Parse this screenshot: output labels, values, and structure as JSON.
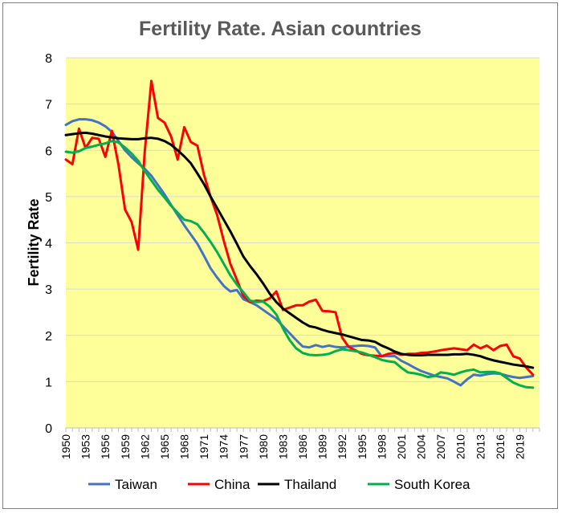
{
  "chart_data": {
    "type": "line",
    "title": "Fertility Rate.  Asian countries",
    "xlabel": "",
    "ylabel": "Fertility Rate",
    "ylim": [
      0,
      8
    ],
    "yticks": [
      0,
      1,
      2,
      3,
      4,
      5,
      6,
      7,
      8
    ],
    "xlim": [
      1950,
      2022
    ],
    "xticks": [
      1950,
      1953,
      1956,
      1959,
      1962,
      1965,
      1968,
      1971,
      1974,
      1977,
      1980,
      1983,
      1986,
      1989,
      1992,
      1995,
      1998,
      2001,
      2004,
      2007,
      2010,
      2013,
      2016,
      2019
    ],
    "plot_background": "#ffff99",
    "grid": true,
    "legend": "bottom",
    "series": [
      {
        "name": "Taiwan",
        "color": "#4472c4",
        "points": [
          [
            1950,
            6.55
          ],
          [
            1951,
            6.63
          ],
          [
            1952,
            6.67
          ],
          [
            1953,
            6.67
          ],
          [
            1954,
            6.65
          ],
          [
            1955,
            6.6
          ],
          [
            1956,
            6.52
          ],
          [
            1957,
            6.4
          ],
          [
            1958,
            6.2
          ],
          [
            1959,
            6.0
          ],
          [
            1960,
            5.85
          ],
          [
            1961,
            5.72
          ],
          [
            1962,
            5.6
          ],
          [
            1963,
            5.45
          ],
          [
            1964,
            5.25
          ],
          [
            1965,
            5.05
          ],
          [
            1966,
            4.82
          ],
          [
            1967,
            4.6
          ],
          [
            1968,
            4.38
          ],
          [
            1969,
            4.18
          ],
          [
            1970,
            3.98
          ],
          [
            1971,
            3.72
          ],
          [
            1972,
            3.45
          ],
          [
            1973,
            3.25
          ],
          [
            1974,
            3.07
          ],
          [
            1975,
            2.95
          ],
          [
            1976,
            2.98
          ],
          [
            1977,
            2.78
          ],
          [
            1978,
            2.72
          ],
          [
            1979,
            2.65
          ],
          [
            1980,
            2.55
          ],
          [
            1981,
            2.45
          ],
          [
            1982,
            2.35
          ],
          [
            1983,
            2.2
          ],
          [
            1984,
            2.05
          ],
          [
            1985,
            1.9
          ],
          [
            1986,
            1.76
          ],
          [
            1987,
            1.74
          ],
          [
            1988,
            1.79
          ],
          [
            1989,
            1.75
          ],
          [
            1990,
            1.78
          ],
          [
            1991,
            1.75
          ],
          [
            1992,
            1.74
          ],
          [
            1993,
            1.76
          ],
          [
            1994,
            1.77
          ],
          [
            1995,
            1.78
          ],
          [
            1996,
            1.77
          ],
          [
            1997,
            1.74
          ],
          [
            1998,
            1.55
          ],
          [
            1999,
            1.55
          ],
          [
            2000,
            1.55
          ],
          [
            2001,
            1.45
          ],
          [
            2002,
            1.38
          ],
          [
            2003,
            1.3
          ],
          [
            2004,
            1.23
          ],
          [
            2005,
            1.18
          ],
          [
            2006,
            1.13
          ],
          [
            2007,
            1.1
          ],
          [
            2008,
            1.07
          ],
          [
            2009,
            1.0
          ],
          [
            2010,
            0.92
          ],
          [
            2011,
            1.05
          ],
          [
            2012,
            1.15
          ],
          [
            2013,
            1.13
          ],
          [
            2014,
            1.16
          ],
          [
            2015,
            1.18
          ],
          [
            2016,
            1.17
          ],
          [
            2017,
            1.13
          ],
          [
            2018,
            1.1
          ],
          [
            2019,
            1.08
          ],
          [
            2020,
            1.1
          ],
          [
            2021,
            1.12
          ]
        ]
      },
      {
        "name": "China",
        "color": "#ff0000",
        "points": [
          [
            1950,
            5.8
          ],
          [
            1951,
            5.7
          ],
          [
            1952,
            6.47
          ],
          [
            1953,
            6.05
          ],
          [
            1954,
            6.27
          ],
          [
            1955,
            6.25
          ],
          [
            1956,
            5.86
          ],
          [
            1957,
            6.42
          ],
          [
            1958,
            5.69
          ],
          [
            1959,
            4.72
          ],
          [
            1960,
            4.45
          ],
          [
            1961,
            3.85
          ],
          [
            1962,
            5.98
          ],
          [
            1963,
            7.5
          ],
          [
            1964,
            6.7
          ],
          [
            1965,
            6.6
          ],
          [
            1966,
            6.3
          ],
          [
            1967,
            5.8
          ],
          [
            1968,
            6.5
          ],
          [
            1969,
            6.18
          ],
          [
            1970,
            6.1
          ],
          [
            1971,
            5.47
          ],
          [
            1972,
            5.0
          ],
          [
            1973,
            4.6
          ],
          [
            1974,
            4.05
          ],
          [
            1975,
            3.55
          ],
          [
            1976,
            3.2
          ],
          [
            1977,
            2.85
          ],
          [
            1978,
            2.72
          ],
          [
            1979,
            2.75
          ],
          [
            1980,
            2.74
          ],
          [
            1981,
            2.8
          ],
          [
            1982,
            2.95
          ],
          [
            1983,
            2.55
          ],
          [
            1984,
            2.6
          ],
          [
            1985,
            2.65
          ],
          [
            1986,
            2.65
          ],
          [
            1987,
            2.73
          ],
          [
            1988,
            2.77
          ],
          [
            1989,
            2.53
          ],
          [
            1990,
            2.52
          ],
          [
            1991,
            2.5
          ],
          [
            1992,
            1.95
          ],
          [
            1993,
            1.75
          ],
          [
            1994,
            1.68
          ],
          [
            1995,
            1.6
          ],
          [
            1996,
            1.57
          ],
          [
            1997,
            1.56
          ],
          [
            1998,
            1.55
          ],
          [
            1999,
            1.6
          ],
          [
            2000,
            1.62
          ],
          [
            2001,
            1.58
          ],
          [
            2002,
            1.6
          ],
          [
            2003,
            1.6
          ],
          [
            2004,
            1.62
          ],
          [
            2005,
            1.63
          ],
          [
            2006,
            1.65
          ],
          [
            2007,
            1.68
          ],
          [
            2008,
            1.7
          ],
          [
            2009,
            1.72
          ],
          [
            2010,
            1.7
          ],
          [
            2011,
            1.68
          ],
          [
            2012,
            1.8
          ],
          [
            2013,
            1.72
          ],
          [
            2014,
            1.78
          ],
          [
            2015,
            1.68
          ],
          [
            2016,
            1.77
          ],
          [
            2017,
            1.8
          ],
          [
            2018,
            1.55
          ],
          [
            2019,
            1.5
          ],
          [
            2020,
            1.3
          ],
          [
            2021,
            1.15
          ]
        ]
      },
      {
        "name": "Thailand",
        "color": "#000000",
        "points": [
          [
            1950,
            6.33
          ],
          [
            1951,
            6.35
          ],
          [
            1952,
            6.37
          ],
          [
            1953,
            6.38
          ],
          [
            1954,
            6.36
          ],
          [
            1955,
            6.33
          ],
          [
            1956,
            6.3
          ],
          [
            1957,
            6.28
          ],
          [
            1958,
            6.26
          ],
          [
            1959,
            6.25
          ],
          [
            1960,
            6.24
          ],
          [
            1961,
            6.24
          ],
          [
            1962,
            6.26
          ],
          [
            1963,
            6.27
          ],
          [
            1964,
            6.25
          ],
          [
            1965,
            6.2
          ],
          [
            1966,
            6.12
          ],
          [
            1967,
            6.0
          ],
          [
            1968,
            5.87
          ],
          [
            1969,
            5.72
          ],
          [
            1970,
            5.5
          ],
          [
            1971,
            5.27
          ],
          [
            1972,
            5.0
          ],
          [
            1973,
            4.75
          ],
          [
            1974,
            4.5
          ],
          [
            1975,
            4.25
          ],
          [
            1976,
            3.98
          ],
          [
            1977,
            3.7
          ],
          [
            1978,
            3.5
          ],
          [
            1979,
            3.32
          ],
          [
            1980,
            3.12
          ],
          [
            1981,
            2.9
          ],
          [
            1982,
            2.72
          ],
          [
            1983,
            2.58
          ],
          [
            1984,
            2.48
          ],
          [
            1985,
            2.38
          ],
          [
            1986,
            2.28
          ],
          [
            1987,
            2.2
          ],
          [
            1988,
            2.17
          ],
          [
            1989,
            2.12
          ],
          [
            1990,
            2.08
          ],
          [
            1991,
            2.05
          ],
          [
            1992,
            2.02
          ],
          [
            1993,
            1.98
          ],
          [
            1994,
            1.94
          ],
          [
            1995,
            1.9
          ],
          [
            1996,
            1.89
          ],
          [
            1997,
            1.86
          ],
          [
            1998,
            1.78
          ],
          [
            1999,
            1.72
          ],
          [
            2000,
            1.65
          ],
          [
            2001,
            1.6
          ],
          [
            2002,
            1.58
          ],
          [
            2003,
            1.57
          ],
          [
            2004,
            1.57
          ],
          [
            2005,
            1.58
          ],
          [
            2006,
            1.58
          ],
          [
            2007,
            1.58
          ],
          [
            2008,
            1.58
          ],
          [
            2009,
            1.59
          ],
          [
            2010,
            1.59
          ],
          [
            2011,
            1.6
          ],
          [
            2012,
            1.58
          ],
          [
            2013,
            1.55
          ],
          [
            2014,
            1.5
          ],
          [
            2015,
            1.46
          ],
          [
            2016,
            1.43
          ],
          [
            2017,
            1.4
          ],
          [
            2018,
            1.37
          ],
          [
            2019,
            1.35
          ],
          [
            2020,
            1.33
          ],
          [
            2021,
            1.3
          ]
        ]
      },
      {
        "name": "South Korea",
        "color": "#00b050",
        "points": [
          [
            1950,
            5.97
          ],
          [
            1951,
            5.95
          ],
          [
            1952,
            5.98
          ],
          [
            1953,
            6.05
          ],
          [
            1954,
            6.08
          ],
          [
            1955,
            6.12
          ],
          [
            1956,
            6.15
          ],
          [
            1957,
            6.2
          ],
          [
            1958,
            6.17
          ],
          [
            1959,
            6.06
          ],
          [
            1960,
            5.93
          ],
          [
            1961,
            5.77
          ],
          [
            1962,
            5.55
          ],
          [
            1963,
            5.35
          ],
          [
            1964,
            5.15
          ],
          [
            1965,
            4.98
          ],
          [
            1966,
            4.8
          ],
          [
            1967,
            4.65
          ],
          [
            1968,
            4.5
          ],
          [
            1969,
            4.47
          ],
          [
            1970,
            4.4
          ],
          [
            1971,
            4.22
          ],
          [
            1972,
            4.02
          ],
          [
            1973,
            3.8
          ],
          [
            1974,
            3.55
          ],
          [
            1975,
            3.3
          ],
          [
            1976,
            3.1
          ],
          [
            1977,
            2.93
          ],
          [
            1978,
            2.75
          ],
          [
            1979,
            2.72
          ],
          [
            1980,
            2.73
          ],
          [
            1981,
            2.62
          ],
          [
            1982,
            2.45
          ],
          [
            1983,
            2.15
          ],
          [
            1984,
            1.9
          ],
          [
            1985,
            1.72
          ],
          [
            1986,
            1.62
          ],
          [
            1987,
            1.58
          ],
          [
            1988,
            1.57
          ],
          [
            1989,
            1.58
          ],
          [
            1990,
            1.6
          ],
          [
            1991,
            1.66
          ],
          [
            1992,
            1.7
          ],
          [
            1993,
            1.68
          ],
          [
            1994,
            1.66
          ],
          [
            1995,
            1.63
          ],
          [
            1996,
            1.58
          ],
          [
            1997,
            1.53
          ],
          [
            1998,
            1.47
          ],
          [
            1999,
            1.44
          ],
          [
            2000,
            1.42
          ],
          [
            2001,
            1.3
          ],
          [
            2002,
            1.2
          ],
          [
            2003,
            1.18
          ],
          [
            2004,
            1.15
          ],
          [
            2005,
            1.1
          ],
          [
            2006,
            1.12
          ],
          [
            2007,
            1.2
          ],
          [
            2008,
            1.18
          ],
          [
            2009,
            1.15
          ],
          [
            2010,
            1.2
          ],
          [
            2011,
            1.24
          ],
          [
            2012,
            1.26
          ],
          [
            2013,
            1.2
          ],
          [
            2014,
            1.21
          ],
          [
            2015,
            1.21
          ],
          [
            2016,
            1.18
          ],
          [
            2017,
            1.08
          ],
          [
            2018,
            0.98
          ],
          [
            2019,
            0.92
          ],
          [
            2020,
            0.88
          ],
          [
            2021,
            0.87
          ]
        ]
      }
    ]
  }
}
